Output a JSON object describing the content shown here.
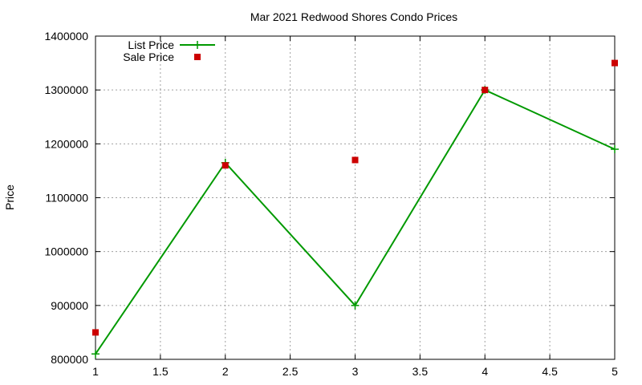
{
  "chart_data": {
    "type": "line",
    "title": "Mar 2021 Redwood Shores Condo Prices",
    "xlabel": "",
    "ylabel": "Price",
    "xlim": [
      1,
      5
    ],
    "ylim": [
      800000,
      1400000
    ],
    "x_ticks": [
      1,
      1.5,
      2,
      2.5,
      3,
      3.5,
      4,
      4.5,
      5
    ],
    "x_tick_labels": [
      "1",
      "1.5",
      "2",
      "2.5",
      "3",
      "3.5",
      "4",
      "4.5",
      "5"
    ],
    "y_ticks": [
      800000,
      900000,
      1000000,
      1100000,
      1200000,
      1300000,
      1400000
    ],
    "y_tick_labels": [
      "800000",
      "900000",
      "1000000",
      "1100000",
      "1200000",
      "1300000",
      "1400000"
    ],
    "grid": true,
    "legend_position": "top-left",
    "series": [
      {
        "name": "List Price",
        "style": "line-plus",
        "color": "#009900",
        "x": [
          1,
          2,
          3,
          4,
          5
        ],
        "y": [
          810000,
          1165000,
          900000,
          1300000,
          1190000
        ]
      },
      {
        "name": "Sale Price",
        "style": "square-points",
        "color": "#cc0000",
        "x": [
          1,
          2,
          3,
          4,
          5
        ],
        "y": [
          850000,
          1160000,
          1170000,
          1300000,
          1350000
        ]
      }
    ]
  }
}
